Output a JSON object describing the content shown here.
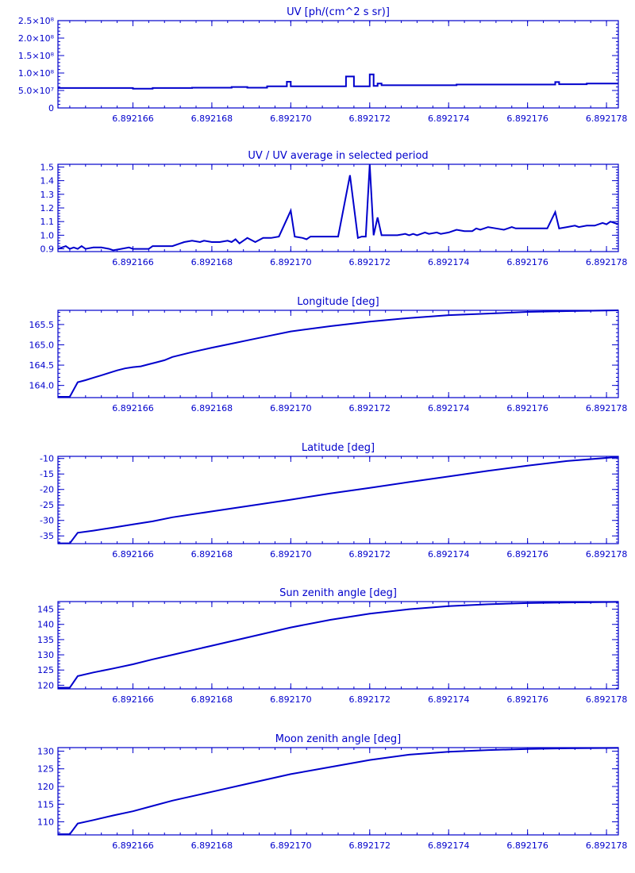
{
  "style": {
    "color": "#0000cc",
    "background": "#ffffff"
  },
  "x_axis": {
    "range": [
      6.8921641,
      6.8921783
    ],
    "ticks": [
      6.892166,
      6.892168,
      6.89217,
      6.892172,
      6.892174,
      6.892176,
      6.892178
    ],
    "tick_labels": [
      "6.892166",
      "6.892168",
      "6.892170",
      "6.892172",
      "6.892174",
      "6.892176",
      "6.892178"
    ]
  },
  "chart_data": [
    {
      "type": "line",
      "title": "UV [ph/(cm^2 s sr)]",
      "ylim": [
        0,
        250000000.0
      ],
      "yticks": [
        0,
        50000000.0,
        100000000.0,
        150000000.0,
        200000000.0,
        250000000.0
      ],
      "ytick_labels": [
        "0",
        "5.0×10⁷",
        "1.0×10⁸",
        "1.5×10⁸",
        "2.0×10⁸",
        "2.5×10⁸"
      ],
      "step": true,
      "points": [
        [
          6.8921641,
          57000000.0
        ],
        [
          6.892166,
          57000000.0
        ],
        [
          6.892166,
          55000000.0
        ],
        [
          6.8921665,
          55000000.0
        ],
        [
          6.8921665,
          57000000.0
        ],
        [
          6.8921675,
          57000000.0
        ],
        [
          6.8921675,
          58000000.0
        ],
        [
          6.8921685,
          58000000.0
        ],
        [
          6.8921685,
          60000000.0
        ],
        [
          6.8921689,
          60000000.0
        ],
        [
          6.8921689,
          58000000.0
        ],
        [
          6.8921694,
          58000000.0
        ],
        [
          6.8921694,
          62000000.0
        ],
        [
          6.8921699,
          62000000.0
        ],
        [
          6.8921699,
          75000000.0
        ],
        [
          6.89217,
          75000000.0
        ],
        [
          6.89217,
          62000000.0
        ],
        [
          6.8921714,
          62000000.0
        ],
        [
          6.8921714,
          90000000.0
        ],
        [
          6.8921716,
          90000000.0
        ],
        [
          6.8921716,
          62000000.0
        ],
        [
          6.892172,
          62000000.0
        ],
        [
          6.892172,
          96000000.0
        ],
        [
          6.8921721,
          96000000.0
        ],
        [
          6.8921721,
          63000000.0
        ],
        [
          6.8921722,
          63000000.0
        ],
        [
          6.8921722,
          70000000.0
        ],
        [
          6.8921723,
          70000000.0
        ],
        [
          6.8921723,
          65000000.0
        ],
        [
          6.8921742,
          65000000.0
        ],
        [
          6.8921742,
          67000000.0
        ],
        [
          6.8921767,
          67000000.0
        ],
        [
          6.8921767,
          74000000.0
        ],
        [
          6.8921768,
          74000000.0
        ],
        [
          6.8921768,
          68000000.0
        ],
        [
          6.8921775,
          68000000.0
        ],
        [
          6.8921775,
          70000000.0
        ],
        [
          6.8921783,
          70000000.0
        ]
      ]
    },
    {
      "type": "line",
      "title": "UV / UV average in selected period",
      "ylim": [
        0.88,
        1.52
      ],
      "yticks": [
        0.9,
        1.0,
        1.1,
        1.2,
        1.3,
        1.4,
        1.5
      ],
      "ytick_labels": [
        "0.9",
        "1.0",
        "1.1",
        "1.2",
        "1.3",
        "1.4",
        "1.5"
      ],
      "points": [
        [
          6.8921641,
          0.9
        ],
        [
          6.8921643,
          0.92
        ],
        [
          6.8921644,
          0.9
        ],
        [
          6.8921645,
          0.91
        ],
        [
          6.8921646,
          0.9
        ],
        [
          6.8921647,
          0.92
        ],
        [
          6.8921648,
          0.9
        ],
        [
          6.892165,
          0.91
        ],
        [
          6.8921652,
          0.91
        ],
        [
          6.8921654,
          0.9
        ],
        [
          6.8921655,
          0.89
        ],
        [
          6.8921657,
          0.9
        ],
        [
          6.8921659,
          0.91
        ],
        [
          6.892166,
          0.9
        ],
        [
          6.8921662,
          0.9
        ],
        [
          6.8921664,
          0.9
        ],
        [
          6.8921665,
          0.92
        ],
        [
          6.892167,
          0.92
        ],
        [
          6.8921672,
          0.94
        ],
        [
          6.8921673,
          0.95
        ],
        [
          6.8921675,
          0.96
        ],
        [
          6.8921677,
          0.95
        ],
        [
          6.8921678,
          0.96
        ],
        [
          6.892168,
          0.95
        ],
        [
          6.8921682,
          0.95
        ],
        [
          6.8921684,
          0.96
        ],
        [
          6.8921685,
          0.95
        ],
        [
          6.8921686,
          0.97
        ],
        [
          6.8921687,
          0.94
        ],
        [
          6.8921689,
          0.98
        ],
        [
          6.8921691,
          0.95
        ],
        [
          6.8921693,
          0.98
        ],
        [
          6.8921695,
          0.98
        ],
        [
          6.8921697,
          0.99
        ],
        [
          6.89217,
          1.18
        ],
        [
          6.8921701,
          0.99
        ],
        [
          6.8921703,
          0.98
        ],
        [
          6.8921704,
          0.97
        ],
        [
          6.8921705,
          0.99
        ],
        [
          6.892171,
          0.99
        ],
        [
          6.8921712,
          0.99
        ],
        [
          6.8921715,
          1.44
        ],
        [
          6.8921717,
          0.98
        ],
        [
          6.8921718,
          0.99
        ],
        [
          6.8921719,
          0.99
        ],
        [
          6.892172,
          1.52
        ],
        [
          6.8921721,
          1.0
        ],
        [
          6.8921722,
          1.13
        ],
        [
          6.8921723,
          1.0
        ],
        [
          6.8921725,
          1.0
        ],
        [
          6.8921727,
          1.0
        ],
        [
          6.8921729,
          1.01
        ],
        [
          6.892173,
          1.0
        ],
        [
          6.8921731,
          1.01
        ],
        [
          6.8921732,
          1.0
        ],
        [
          6.8921733,
          1.01
        ],
        [
          6.8921734,
          1.02
        ],
        [
          6.8921735,
          1.01
        ],
        [
          6.8921737,
          1.02
        ],
        [
          6.8921738,
          1.01
        ],
        [
          6.892174,
          1.02
        ],
        [
          6.8921742,
          1.04
        ],
        [
          6.8921744,
          1.03
        ],
        [
          6.8921746,
          1.03
        ],
        [
          6.8921747,
          1.05
        ],
        [
          6.8921748,
          1.04
        ],
        [
          6.8921749,
          1.05
        ],
        [
          6.892175,
          1.06
        ],
        [
          6.8921752,
          1.05
        ],
        [
          6.8921754,
          1.04
        ],
        [
          6.8921755,
          1.05
        ],
        [
          6.8921756,
          1.06
        ],
        [
          6.8921757,
          1.05
        ],
        [
          6.892176,
          1.05
        ],
        [
          6.8921763,
          1.05
        ],
        [
          6.8921765,
          1.05
        ],
        [
          6.8921767,
          1.17
        ],
        [
          6.8921768,
          1.05
        ],
        [
          6.892177,
          1.06
        ],
        [
          6.8921772,
          1.07
        ],
        [
          6.8921773,
          1.06
        ],
        [
          6.8921775,
          1.07
        ],
        [
          6.8921777,
          1.07
        ],
        [
          6.8921779,
          1.09
        ],
        [
          6.892178,
          1.08
        ],
        [
          6.8921781,
          1.1
        ],
        [
          6.8921782,
          1.09
        ],
        [
          6.8921783,
          1.08
        ]
      ]
    },
    {
      "type": "line",
      "title": "Longitude [deg]",
      "ylim": [
        163.7,
        165.85
      ],
      "yticks": [
        164.0,
        164.5,
        165.0,
        165.5
      ],
      "ytick_labels": [
        "164.0",
        "164.5",
        "165.0",
        "165.5"
      ],
      "points": [
        [
          6.8921641,
          163.72
        ],
        [
          6.8921644,
          163.72
        ],
        [
          6.8921646,
          164.08
        ],
        [
          6.8921648,
          164.13
        ],
        [
          6.892165,
          164.19
        ],
        [
          6.8921652,
          164.25
        ],
        [
          6.8921654,
          164.31
        ],
        [
          6.8921656,
          164.37
        ],
        [
          6.8921658,
          164.42
        ],
        [
          6.892166,
          164.45
        ],
        [
          6.8921662,
          164.47
        ],
        [
          6.8921664,
          164.52
        ],
        [
          6.8921666,
          164.57
        ],
        [
          6.8921668,
          164.62
        ],
        [
          6.892167,
          164.7
        ],
        [
          6.8921675,
          164.82
        ],
        [
          6.892168,
          164.93
        ],
        [
          6.8921685,
          165.03
        ],
        [
          6.892169,
          165.13
        ],
        [
          6.8921695,
          165.23
        ],
        [
          6.89217,
          165.33
        ],
        [
          6.892171,
          165.46
        ],
        [
          6.892172,
          165.57
        ],
        [
          6.892173,
          165.66
        ],
        [
          6.892174,
          165.73
        ],
        [
          6.892175,
          165.77
        ],
        [
          6.892176,
          165.81
        ],
        [
          6.892177,
          165.83
        ],
        [
          6.8921783,
          165.85
        ]
      ]
    },
    {
      "type": "line",
      "title": "Latitude [deg]",
      "ylim": [
        -37.5,
        -9.3
      ],
      "yticks": [
        -35,
        -30,
        -25,
        -20,
        -15,
        -10
      ],
      "ytick_labels": [
        "-35",
        "-30",
        "-25",
        "-20",
        "-15",
        "-10"
      ],
      "points": [
        [
          6.8921641,
          -37.4
        ],
        [
          6.8921644,
          -37.4
        ],
        [
          6.8921646,
          -34.0
        ],
        [
          6.892165,
          -33.3
        ],
        [
          6.8921655,
          -32.3
        ],
        [
          6.892166,
          -31.3
        ],
        [
          6.8921665,
          -30.3
        ],
        [
          6.892167,
          -29.0
        ],
        [
          6.892168,
          -27.1
        ],
        [
          6.892169,
          -25.2
        ],
        [
          6.89217,
          -23.3
        ],
        [
          6.892171,
          -21.3
        ],
        [
          6.892172,
          -19.5
        ],
        [
          6.892173,
          -17.6
        ],
        [
          6.892174,
          -15.8
        ],
        [
          6.892175,
          -14.0
        ],
        [
          6.892176,
          -12.3
        ],
        [
          6.892177,
          -10.8
        ],
        [
          6.8921783,
          -9.5
        ]
      ]
    },
    {
      "type": "line",
      "title": "Sun zenith angle [deg]",
      "ylim": [
        118.8,
        147.5
      ],
      "yticks": [
        120,
        125,
        130,
        135,
        140,
        145
      ],
      "ytick_labels": [
        "120",
        "125",
        "130",
        "135",
        "140",
        "145"
      ],
      "points": [
        [
          6.8921641,
          119.2
        ],
        [
          6.8921644,
          119.2
        ],
        [
          6.8921646,
          123.0
        ],
        [
          6.892165,
          124.2
        ],
        [
          6.8921655,
          125.5
        ],
        [
          6.892166,
          126.9
        ],
        [
          6.8921665,
          128.5
        ],
        [
          6.892167,
          130.0
        ],
        [
          6.892168,
          133.0
        ],
        [
          6.892169,
          136.0
        ],
        [
          6.89217,
          139.0
        ],
        [
          6.892171,
          141.5
        ],
        [
          6.892172,
          143.5
        ],
        [
          6.892173,
          145.0
        ],
        [
          6.892174,
          146.0
        ],
        [
          6.892175,
          146.6
        ],
        [
          6.892176,
          147.0
        ],
        [
          6.892177,
          147.2
        ],
        [
          6.8921783,
          147.4
        ]
      ]
    },
    {
      "type": "line",
      "title": "Moon zenith angle [deg]",
      "ylim": [
        106.3,
        131.0
      ],
      "yticks": [
        110,
        115,
        120,
        125,
        130
      ],
      "ytick_labels": [
        "110",
        "115",
        "120",
        "125",
        "130"
      ],
      "points": [
        [
          6.8921641,
          106.5
        ],
        [
          6.8921644,
          106.5
        ],
        [
          6.8921646,
          109.5
        ],
        [
          6.892165,
          110.5
        ],
        [
          6.8921655,
          111.8
        ],
        [
          6.892166,
          113.0
        ],
        [
          6.8921665,
          114.5
        ],
        [
          6.892167,
          116.0
        ],
        [
          6.892168,
          118.5
        ],
        [
          6.892169,
          121.0
        ],
        [
          6.89217,
          123.5
        ],
        [
          6.892171,
          125.5
        ],
        [
          6.892172,
          127.5
        ],
        [
          6.892173,
          129.0
        ],
        [
          6.892174,
          129.8
        ],
        [
          6.892175,
          130.3
        ],
        [
          6.892176,
          130.6
        ],
        [
          6.892177,
          130.8
        ],
        [
          6.8921783,
          130.9
        ]
      ]
    }
  ]
}
